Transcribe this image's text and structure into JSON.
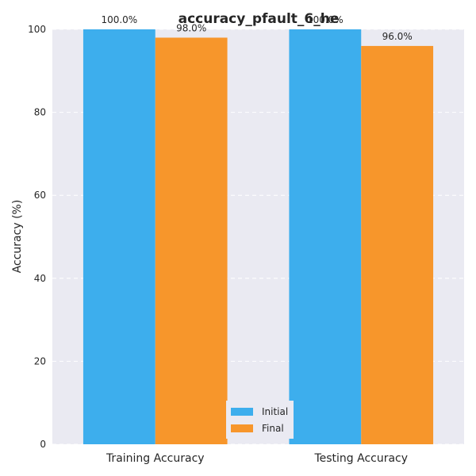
{
  "chart_data": {
    "type": "bar",
    "title": "accuracy_pfault_6_he",
    "xlabel": "",
    "ylabel": "Accuracy (%)",
    "categories": [
      "Training Accuracy",
      "Testing Accuracy"
    ],
    "ylim": [
      0,
      100
    ],
    "yticks": [
      0,
      20,
      40,
      60,
      80,
      100
    ],
    "grid": true,
    "legend_position": "bottom-center",
    "series": [
      {
        "name": "Initial",
        "color": "#3daeed",
        "values": [
          100.0,
          100.0
        ],
        "labels": [
          "100.0%",
          "100.0%"
        ]
      },
      {
        "name": "Final",
        "color": "#f7962b",
        "values": [
          98.0,
          96.0
        ],
        "labels": [
          "98.0%",
          "96.0%"
        ]
      }
    ]
  }
}
